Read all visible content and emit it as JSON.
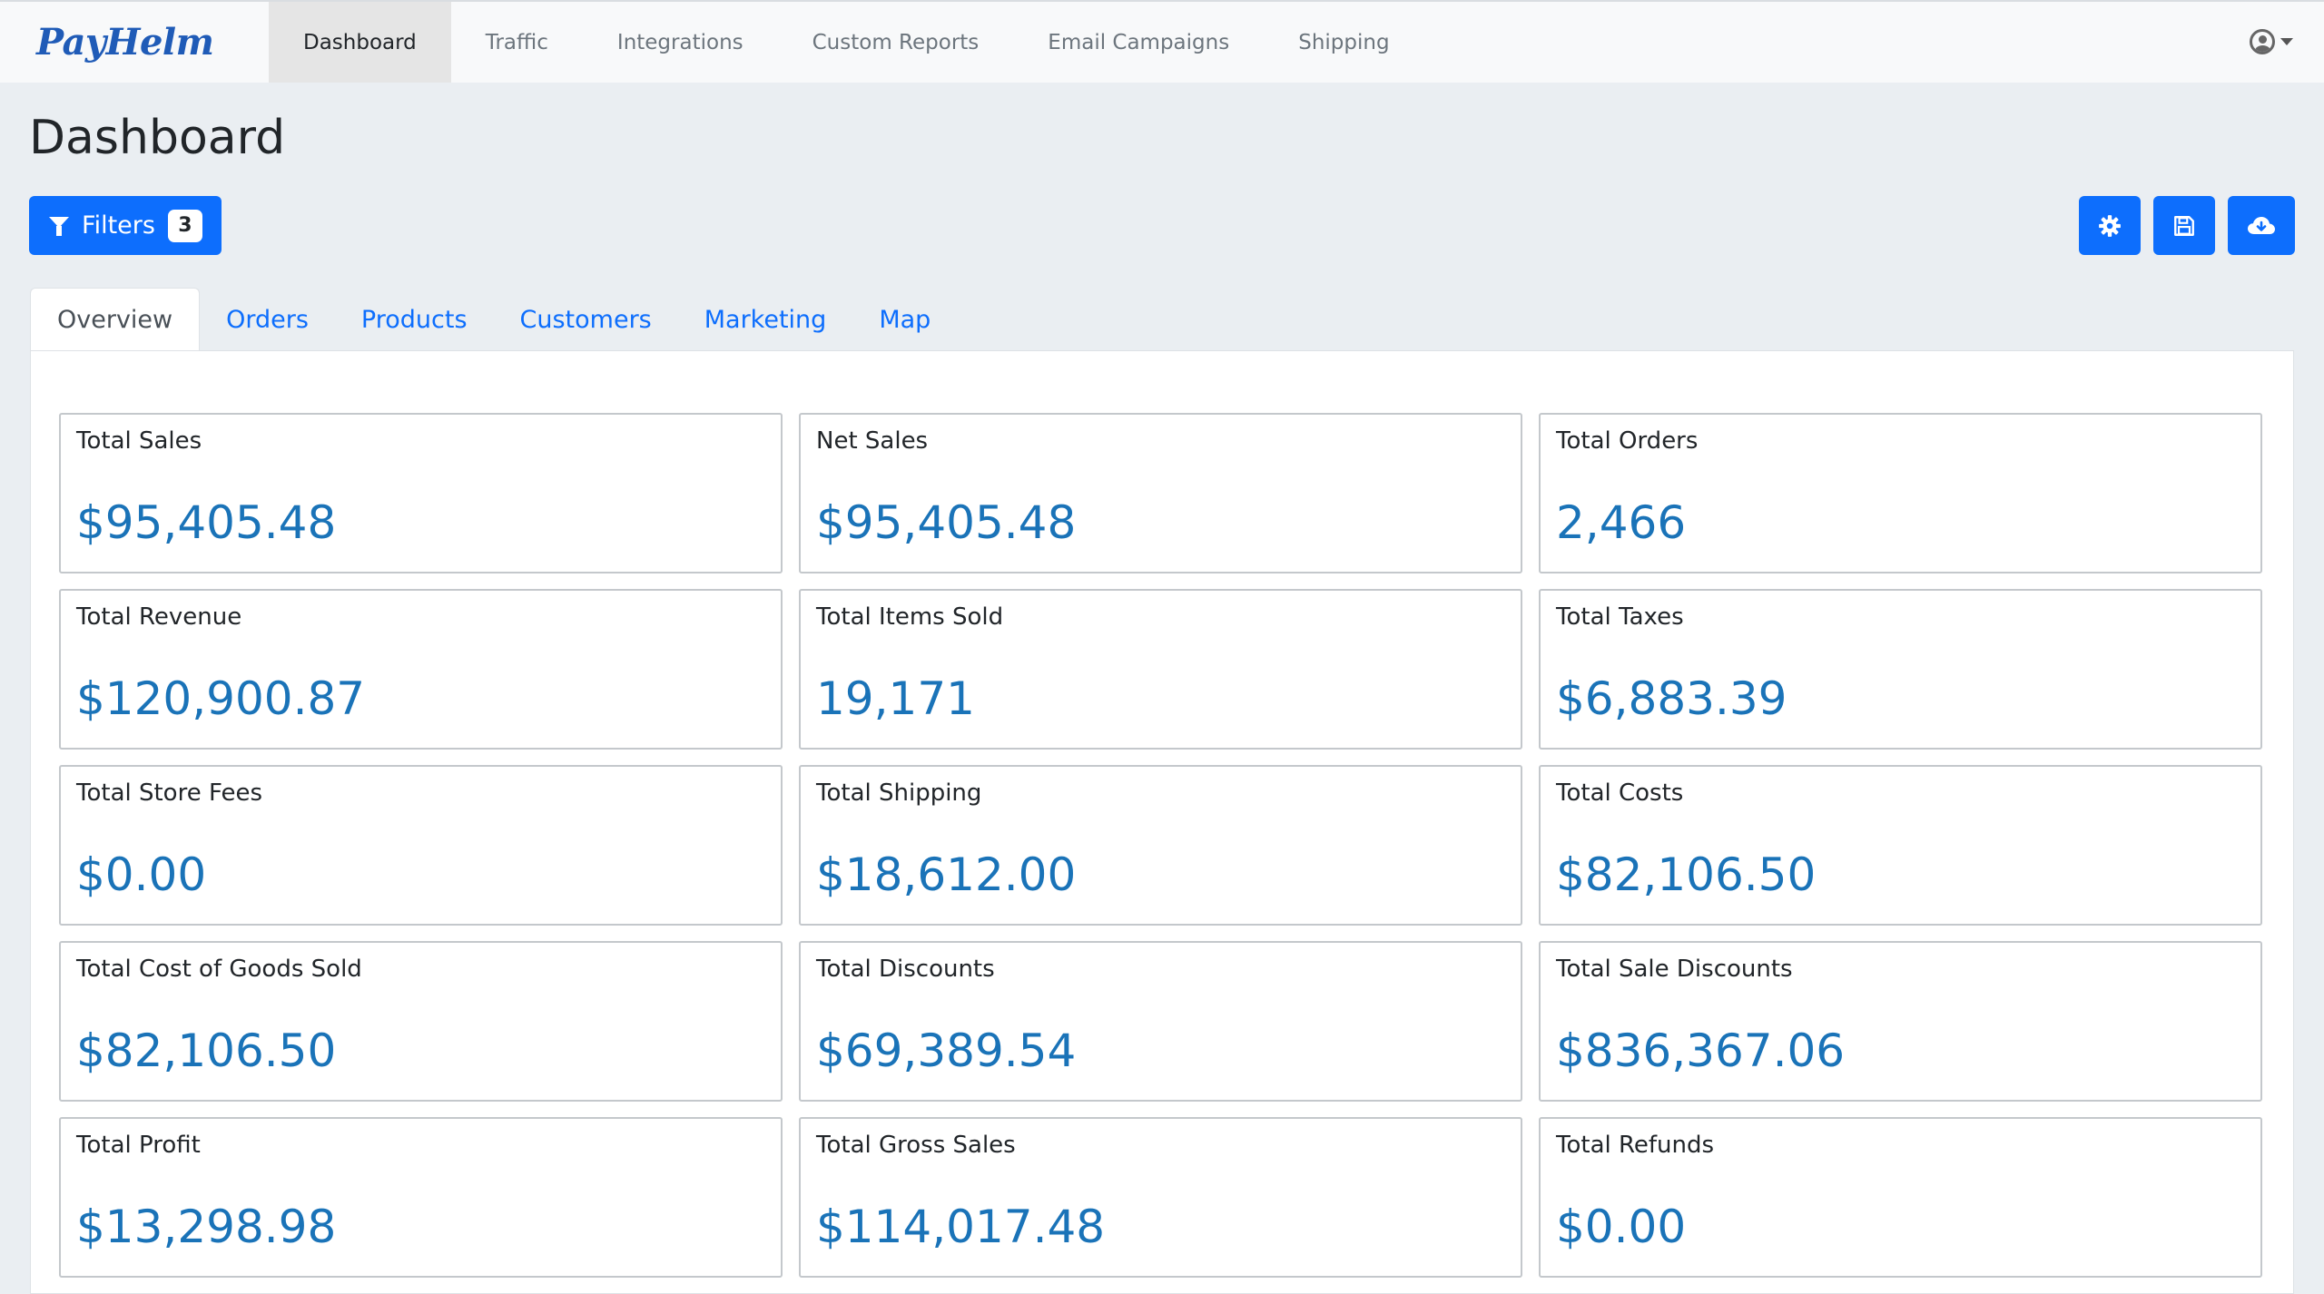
{
  "brand": "PayHelm",
  "nav": [
    {
      "label": "Dashboard",
      "active": true
    },
    {
      "label": "Traffic"
    },
    {
      "label": "Integrations"
    },
    {
      "label": "Custom Reports"
    },
    {
      "label": "Email Campaigns"
    },
    {
      "label": "Shipping"
    }
  ],
  "page_title": "Dashboard",
  "filters": {
    "label": "Filters",
    "count": "3"
  },
  "toolbar_icons": [
    "gear-icon",
    "save-icon",
    "cloud-download-icon"
  ],
  "tabs": [
    {
      "label": "Overview",
      "active": true
    },
    {
      "label": "Orders"
    },
    {
      "label": "Products"
    },
    {
      "label": "Customers"
    },
    {
      "label": "Marketing"
    },
    {
      "label": "Map"
    }
  ],
  "cards": [
    {
      "label": "Total Sales",
      "value": "$95,405.48"
    },
    {
      "label": "Net Sales",
      "value": "$95,405.48"
    },
    {
      "label": "Total Orders",
      "value": "2,466"
    },
    {
      "label": "Total Revenue",
      "value": "$120,900.87"
    },
    {
      "label": "Total Items Sold",
      "value": "19,171"
    },
    {
      "label": "Total Taxes",
      "value": "$6,883.39"
    },
    {
      "label": "Total Store Fees",
      "value": "$0.00"
    },
    {
      "label": "Total Shipping",
      "value": "$18,612.00"
    },
    {
      "label": "Total Costs",
      "value": "$82,106.50"
    },
    {
      "label": "Total Cost of Goods Sold",
      "value": "$82,106.50"
    },
    {
      "label": "Total Discounts",
      "value": "$69,389.54"
    },
    {
      "label": "Total Sale Discounts",
      "value": "$836,367.06"
    },
    {
      "label": "Total Profit",
      "value": "$13,298.98"
    },
    {
      "label": "Total Gross Sales",
      "value": "$114,017.48"
    },
    {
      "label": "Total Refunds",
      "value": "$0.00"
    }
  ],
  "colors": {
    "accent": "#0d6efd",
    "metric": "#1a73b8",
    "background": "#eaeef2"
  }
}
